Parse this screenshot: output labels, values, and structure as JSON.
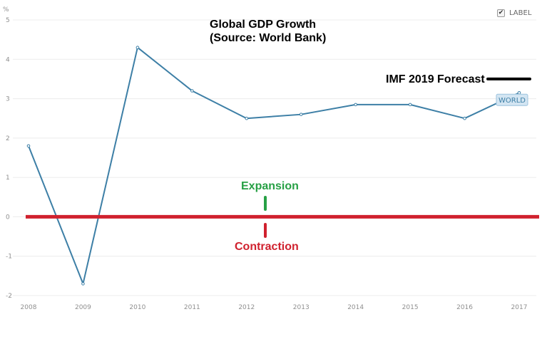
{
  "label_toggle": {
    "text": "LABEL",
    "checked": true
  },
  "chart_data": {
    "type": "line",
    "title": [
      "Global GDP Growth",
      "(Source: World Bank)"
    ],
    "ylabel": "%",
    "xlabel": "",
    "x": [
      "2008",
      "2009",
      "2010",
      "2011",
      "2012",
      "2013",
      "2014",
      "2015",
      "2016",
      "2017"
    ],
    "ylim": [
      -2,
      5
    ],
    "yticks": [
      "5",
      "4",
      "3",
      "2",
      "1",
      "0",
      "-1",
      "-2"
    ],
    "series": [
      {
        "name": "WORLD",
        "values": [
          1.8,
          -1.7,
          4.3,
          3.2,
          2.5,
          2.6,
          2.85,
          2.85,
          2.5,
          3.15
        ],
        "color": "#3d7fa6"
      }
    ],
    "grid": true,
    "reference_line": {
      "value": 0,
      "color": "#d0212e"
    },
    "annotations": {
      "forecast": {
        "text": "IMF 2019 Forecast",
        "value": 3.5,
        "color": "#000000"
      },
      "expansion": {
        "text": "Expansion",
        "color": "#27a045"
      },
      "contraction": {
        "text": "Contraction",
        "color": "#d0212e"
      }
    },
    "colors": {
      "grid": "#ececec",
      "tick": "#8f8f8f",
      "series_label_bg": "#d3e5f2"
    }
  }
}
